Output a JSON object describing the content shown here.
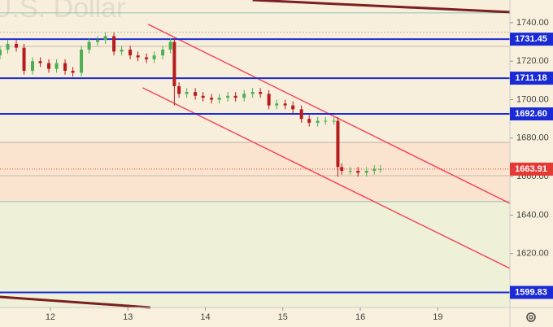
{
  "chart_data": {
    "type": "candlestick",
    "title": "U.S. Dollar",
    "x": [
      -0.65,
      -0.55,
      -0.44,
      -0.34,
      -0.23,
      -0.13,
      -0.02,
      0.08,
      0.19,
      0.29,
      0.4,
      0.5,
      0.61,
      0.71,
      0.82,
      0.92,
      1.03,
      1.13,
      1.24,
      1.34,
      1.45,
      1.55,
      1.6,
      1.66,
      1.76,
      1.87,
      1.97,
      2.08,
      2.18,
      2.29,
      2.39,
      2.5,
      2.61,
      2.71,
      2.82,
      2.92,
      3.03,
      3.13,
      3.24,
      3.34,
      3.45,
      3.55,
      3.66,
      3.71,
      3.76,
      3.87,
      3.97,
      4.08,
      4.18,
      4.26
    ],
    "open": [
      1723,
      1726,
      1729,
      1727,
      1715,
      1720,
      1719,
      1716,
      1719,
      1715,
      1714,
      1726,
      1730,
      1731,
      1733,
      1725,
      1726,
      1723,
      1722,
      1721,
      1723,
      1726,
      1730,
      1707,
      1703,
      1704,
      1702,
      1701,
      1700,
      1701,
      1702,
      1701,
      1703,
      1704,
      1703,
      1697,
      1698,
      1697,
      1695,
      1690,
      1688,
      1689,
      1689,
      1689,
      1665,
      1663,
      1663,
      1662,
      1663,
      1664
    ],
    "high": [
      1728,
      1731,
      1731,
      1729,
      1722,
      1722,
      1721,
      1721,
      1721,
      1717,
      1728,
      1732,
      1733,
      1735,
      1735,
      1728,
      1728,
      1725,
      1724,
      1725,
      1728,
      1732,
      1732,
      1709,
      1706,
      1706,
      1704,
      1703,
      1703,
      1704,
      1704,
      1705,
      1706,
      1706,
      1705,
      1700,
      1700,
      1699,
      1697,
      1692,
      1691,
      1691,
      1691,
      1691,
      1667,
      1665,
      1665,
      1665,
      1666,
      1666
    ],
    "low": [
      1721,
      1724,
      1725,
      1713,
      1713,
      1717,
      1714,
      1714,
      1713,
      1712,
      1712,
      1724,
      1728,
      1729,
      1723,
      1723,
      1721,
      1720,
      1719,
      1719,
      1721,
      1724,
      1697,
      1701,
      1701,
      1700,
      1699,
      1698,
      1698,
      1699,
      1699,
      1699,
      1701,
      1701,
      1695,
      1695,
      1695,
      1693,
      1688,
      1686,
      1686,
      1687,
      1687,
      1660,
      1661,
      1661,
      1660,
      1660,
      1661,
      1662
    ],
    "close": [
      1726,
      1729,
      1727,
      1715,
      1720,
      1719,
      1716,
      1719,
      1715,
      1714,
      1726,
      1730,
      1731,
      1733,
      1725,
      1726,
      1723,
      1722,
      1721,
      1723,
      1726,
      1730,
      1707,
      1703,
      1704,
      1702,
      1701,
      1700,
      1701,
      1702,
      1701,
      1703,
      1704,
      1703,
      1697,
      1698,
      1697,
      1695,
      1690,
      1688,
      1689,
      1689,
      1689,
      1665,
      1663,
      1663,
      1662,
      1663,
      1664,
      1664
    ],
    "up_color": "#4caf50",
    "down_color": "#b71c1c",
    "xlim": [
      -0.65,
      5.93
    ],
    "ylim": [
      1592,
      1751.8
    ],
    "xticks": [
      {
        "value": 0,
        "label": "12"
      },
      {
        "value": 1,
        "label": "13"
      },
      {
        "value": 2,
        "label": "14"
      },
      {
        "value": 3,
        "label": "15"
      },
      {
        "value": 4,
        "label": "16"
      },
      {
        "value": 5,
        "label": "19"
      }
    ],
    "yticks": [
      {
        "value": 1740,
        "label": "1740.00"
      },
      {
        "value": 1720,
        "label": "1720.00"
      },
      {
        "value": 1700,
        "label": "1700.00"
      },
      {
        "value": 1680,
        "label": "1680.00"
      },
      {
        "value": 1660,
        "label": "1660.00"
      },
      {
        "value": 1640,
        "label": "1640.00"
      },
      {
        "value": 1620,
        "label": "1620.00"
      }
    ],
    "levels": [
      {
        "value": 1731.45,
        "label": "1731.45"
      },
      {
        "value": 1711.18,
        "label": "1711.18"
      },
      {
        "value": 1692.6,
        "label": "1692.60"
      },
      {
        "value": 1599.83,
        "label": "1599.83"
      }
    ],
    "level_color": "#1a2bd6",
    "last_price": {
      "value": 1663.91,
      "label": "1663.91"
    },
    "last_price_color": "#e53935",
    "thin_levels": [
      1745.1,
      1735,
      1727.7,
      1677.8,
      1660.5,
      1647
    ],
    "trend_lines": [
      {
        "color": "#f44a5e",
        "x": [
          1.26,
          5.93
        ],
        "y": [
          1739.2,
          1646.1
        ]
      },
      {
        "color": "#f44a5e",
        "x": [
          1.19,
          5.93
        ],
        "y": [
          1706.2,
          1612.3
        ]
      },
      {
        "color": "#7b1f1f",
        "x": [
          2.61,
          5.93
        ],
        "y": [
          1751.8,
          1745.5
        ]
      },
      {
        "color": "#7b1f1f",
        "x": [
          -0.65,
          1.29
        ],
        "y": [
          1597.5,
          1592.0
        ]
      }
    ]
  }
}
